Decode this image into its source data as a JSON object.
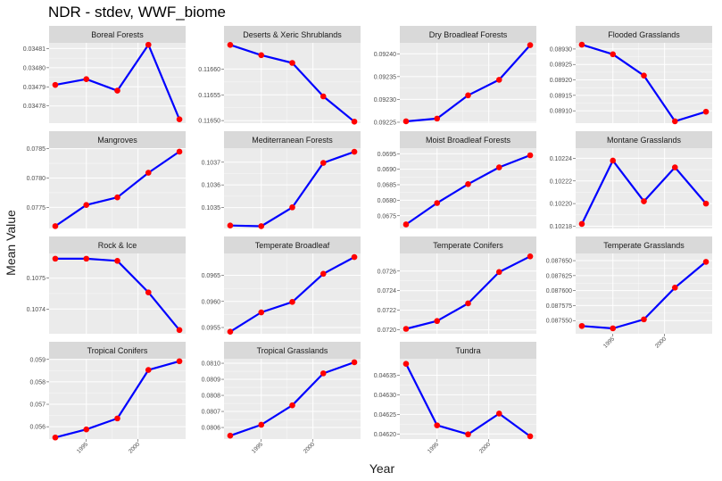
{
  "title": "NDR - stdev, WWF_biome",
  "chart_data": {
    "type": "line",
    "title": "NDR - stdev, WWF_biome",
    "xlabel": "Year",
    "ylabel": "Mean Value",
    "x": [
      1992,
      1995,
      1998,
      2001,
      2004
    ],
    "x_ticks": [
      1995,
      2000
    ],
    "x_tick_labels": [
      "1995",
      "2000"
    ],
    "xlim": [
      1991.4,
      2004.6
    ],
    "grid": true,
    "legend": "none",
    "line_color": "#0000ff",
    "point_color": "#ff0000",
    "panel_bg": "#ebebeb",
    "strip_bg": "#d9d9d9",
    "panels": [
      {
        "name": "Boreal Forests",
        "values": [
          0.034791,
          0.034794,
          0.034788,
          0.034812,
          0.034773
        ],
        "ylim": [
          0.034771,
          0.034813
        ],
        "yticks": [
          0.03478,
          0.03479,
          0.0348,
          0.03481
        ],
        "ytick_labels": [
          "0.03478",
          "0.03479",
          "0.03480",
          "0.03481"
        ]
      },
      {
        "name": "Deserts & Xeric Shrublands",
        "values": [
          0.116647,
          0.116627,
          0.116612,
          0.116547,
          0.116498
        ],
        "ylim": [
          0.116495,
          0.116651
        ],
        "yticks": [
          0.1165,
          0.11655,
          0.1166
        ],
        "ytick_labels": [
          "0.11650",
          "0.11655",
          "0.11660"
        ]
      },
      {
        "name": "Dry Broadleaf Forests",
        "values": [
          0.092252,
          0.092258,
          0.092309,
          0.092343,
          0.092419
        ],
        "ylim": [
          0.092248,
          0.092424
        ],
        "yticks": [
          0.09225,
          0.0923,
          0.09235,
          0.0924
        ],
        "ytick_labels": [
          "0.09225",
          "0.09230",
          "0.09235",
          "0.09240"
        ]
      },
      {
        "name": "Flooded Grasslands",
        "values": [
          0.089314,
          0.089283,
          0.089214,
          0.089066,
          0.089097
        ],
        "ylim": [
          0.08906,
          0.08932
        ],
        "yticks": [
          0.0891,
          0.08915,
          0.0892,
          0.08925,
          0.0893
        ],
        "ytick_labels": [
          "0.08910",
          "0.08915",
          "0.08920",
          "0.08925",
          "0.08930"
        ]
      },
      {
        "name": "Mangroves",
        "values": [
          0.07718,
          0.07754,
          0.07767,
          0.07809,
          0.07845
        ],
        "ylim": [
          0.07714,
          0.07851
        ],
        "yticks": [
          0.0775,
          0.078,
          0.0785
        ],
        "ytick_labels": [
          "0.0775",
          "0.0780",
          "0.0785"
        ]
      },
      {
        "name": "Mediterranean Forests",
        "values": [
          0.103421,
          0.103418,
          0.103501,
          0.103697,
          0.103746
        ],
        "ylim": [
          0.103408,
          0.103762
        ],
        "yticks": [
          0.1035,
          0.1036,
          0.1037
        ],
        "ytick_labels": [
          "0.1035",
          "0.1036",
          "0.1037"
        ]
      },
      {
        "name": "Moist Broadleaf Forests",
        "values": [
          0.06722,
          0.06791,
          0.06852,
          0.06906,
          0.06945
        ],
        "ylim": [
          0.06709,
          0.06968
        ],
        "yticks": [
          0.0675,
          0.068,
          0.0685,
          0.069,
          0.0695
        ],
        "ytick_labels": [
          "0.0675",
          "0.0680",
          "0.0685",
          "0.0690",
          "0.0695"
        ]
      },
      {
        "name": "Montane Grasslands",
        "values": [
          0.102182,
          0.102238,
          0.102202,
          0.102232,
          0.1022
        ],
        "ylim": [
          0.102178,
          0.102249
        ],
        "yticks": [
          0.10218,
          0.1022,
          0.10222,
          0.10224
        ],
        "ytick_labels": [
          "0.10218",
          "0.10220",
          "0.10222",
          "0.10224"
        ]
      },
      {
        "name": "Rock & Ice",
        "values": [
          0.107563,
          0.107563,
          0.107556,
          0.107454,
          0.107332
        ],
        "ylim": [
          0.10732,
          0.10758
        ],
        "yticks": [
          0.1074,
          0.1075
        ],
        "ytick_labels": [
          "0.1074",
          "0.1075"
        ]
      },
      {
        "name": "Temperate Broadleaf",
        "values": [
          0.09542,
          0.09579,
          0.09599,
          0.09653,
          0.09685
        ],
        "ylim": [
          0.09538,
          0.09692
        ],
        "yticks": [
          0.0955,
          0.096,
          0.0965
        ],
        "ytick_labels": [
          "0.0955",
          "0.0960",
          "0.0965"
        ]
      },
      {
        "name": "Temperate Conifers",
        "values": [
          0.07201,
          0.07209,
          0.07227,
          0.07259,
          0.07275
        ],
        "ylim": [
          0.07196,
          0.07278
        ],
        "yticks": [
          0.072,
          0.0722,
          0.0724,
          0.0726
        ],
        "ytick_labels": [
          "0.0720",
          "0.0722",
          "0.0724",
          "0.0726"
        ]
      },
      {
        "name": "Temperate Grasslands",
        "values": [
          0.087541,
          0.087537,
          0.087552,
          0.087605,
          0.087648
        ],
        "ylim": [
          0.087528,
          0.087662
        ],
        "yticks": [
          0.08755,
          0.087575,
          0.0876,
          0.087625,
          0.08765
        ],
        "ytick_labels": [
          "0.087550",
          "0.087575",
          "0.087600",
          "0.087625",
          "0.087650"
        ]
      },
      {
        "name": "Tropical Conifers",
        "values": [
          0.05552,
          0.05588,
          0.05637,
          0.05853,
          0.05892
        ],
        "ylim": [
          0.05545,
          0.05903
        ],
        "yticks": [
          0.056,
          0.057,
          0.058,
          0.059
        ],
        "ytick_labels": [
          "0.056",
          "0.057",
          "0.058",
          "0.059"
        ]
      },
      {
        "name": "Tropical Grasslands",
        "values": [
          0.080549,
          0.080617,
          0.080738,
          0.080937,
          0.081006
        ],
        "ylim": [
          0.080528,
          0.081028
        ],
        "yticks": [
          0.0806,
          0.0807,
          0.0808,
          0.0809,
          0.081
        ],
        "ytick_labels": [
          "0.0806",
          "0.0807",
          "0.0808",
          "0.0809",
          "0.0810"
        ]
      },
      {
        "name": "Tundra",
        "values": [
          0.046379,
          0.046222,
          0.046199,
          0.046252,
          0.046194
        ],
        "ylim": [
          0.046187,
          0.046392
        ],
        "yticks": [
          0.0462,
          0.04625,
          0.0463,
          0.04635
        ],
        "ytick_labels": [
          "0.04620",
          "0.04625",
          "0.04630",
          "0.04635"
        ]
      }
    ]
  }
}
